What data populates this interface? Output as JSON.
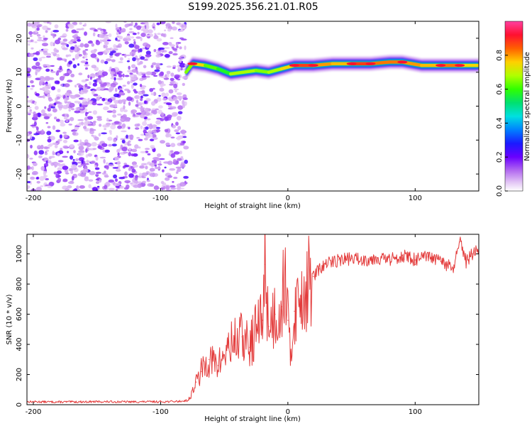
{
  "figure_title": "S199.2025.356.21.01.R05",
  "chart_data": [
    {
      "type": "heatmap",
      "title": "S199.2025.356.21.01.R05",
      "xlabel": "Height of straight line (km)",
      "ylabel": "Frequency (Hz)",
      "xlim": [
        -205,
        150
      ],
      "ylim": [
        -25,
        25
      ],
      "xticks": [
        -200,
        -100,
        0,
        100
      ],
      "yticks": [
        -20,
        -10,
        0,
        10,
        20
      ],
      "noise_region": {
        "x_from": -205,
        "x_to": -80,
        "description": "broadband noise, low amplitude"
      },
      "signal_band": [
        {
          "x": -80,
          "freq": 10,
          "amplitude": 0.5
        },
        {
          "x": -75,
          "freq": 12.5,
          "amplitude": 0.8
        },
        {
          "x": -65,
          "freq": 12,
          "amplitude": 0.7
        },
        {
          "x": -55,
          "freq": 11,
          "amplitude": 0.55
        },
        {
          "x": -45,
          "freq": 9.5,
          "amplitude": 0.6
        },
        {
          "x": -35,
          "freq": 10,
          "amplitude": 0.75
        },
        {
          "x": -25,
          "freq": 10.5,
          "amplitude": 0.6
        },
        {
          "x": -15,
          "freq": 10,
          "amplitude": 0.7
        },
        {
          "x": -5,
          "freq": 11,
          "amplitude": 0.65
        },
        {
          "x": 5,
          "freq": 12,
          "amplitude": 0.85
        },
        {
          "x": 20,
          "freq": 12,
          "amplitude": 0.9
        },
        {
          "x": 35,
          "freq": 12.5,
          "amplitude": 0.7
        },
        {
          "x": 50,
          "freq": 12.5,
          "amplitude": 0.85
        },
        {
          "x": 65,
          "freq": 12.5,
          "amplitude": 0.9
        },
        {
          "x": 80,
          "freq": 13,
          "amplitude": 0.75
        },
        {
          "x": 90,
          "freq": 13,
          "amplitude": 0.9
        },
        {
          "x": 105,
          "freq": 12,
          "amplitude": 0.7
        },
        {
          "x": 120,
          "freq": 12,
          "amplitude": 0.85
        },
        {
          "x": 135,
          "freq": 12,
          "amplitude": 0.8
        },
        {
          "x": 150,
          "freq": 12,
          "amplitude": 0.7
        }
      ],
      "colorbar": {
        "label": "Normalized spectral amplitude",
        "range": [
          0.0,
          1.0
        ],
        "ticks": [
          "0.0",
          "0.2",
          "0.4",
          "0.6",
          "0.8"
        ]
      }
    },
    {
      "type": "line",
      "title": "",
      "xlabel": "Height of straight line (km)",
      "ylabel": "SNR (10 * v/v)",
      "xlim": [
        -205,
        150
      ],
      "ylim": [
        0,
        1130
      ],
      "xticks": [
        -200,
        -100,
        0,
        100
      ],
      "yticks": [
        0,
        200,
        400,
        600,
        800,
        1000
      ],
      "series": [
        {
          "name": "SNR",
          "color": "#e33b3b",
          "x": [
            -205,
            -180,
            -150,
            -120,
            -100,
            -85,
            -78,
            -72,
            -68,
            -62,
            -55,
            -48,
            -42,
            -36,
            -30,
            -25,
            -20,
            -18,
            -15,
            -10,
            -5,
            -2,
            0,
            2,
            5,
            10,
            15,
            20,
            25,
            30,
            35,
            40,
            50,
            60,
            70,
            80,
            90,
            100,
            110,
            120,
            130,
            135,
            140,
            145,
            150
          ],
          "values": [
            20,
            18,
            20,
            19,
            20,
            22,
            30,
            150,
            220,
            300,
            260,
            360,
            420,
            450,
            380,
            500,
            560,
            930,
            520,
            600,
            650,
            900,
            560,
            300,
            620,
            720,
            780,
            850,
            900,
            930,
            950,
            960,
            970,
            960,
            975,
            960,
            990,
            960,
            980,
            950,
            900,
            1080,
            950,
            1000,
            1030
          ]
        }
      ]
    }
  ]
}
